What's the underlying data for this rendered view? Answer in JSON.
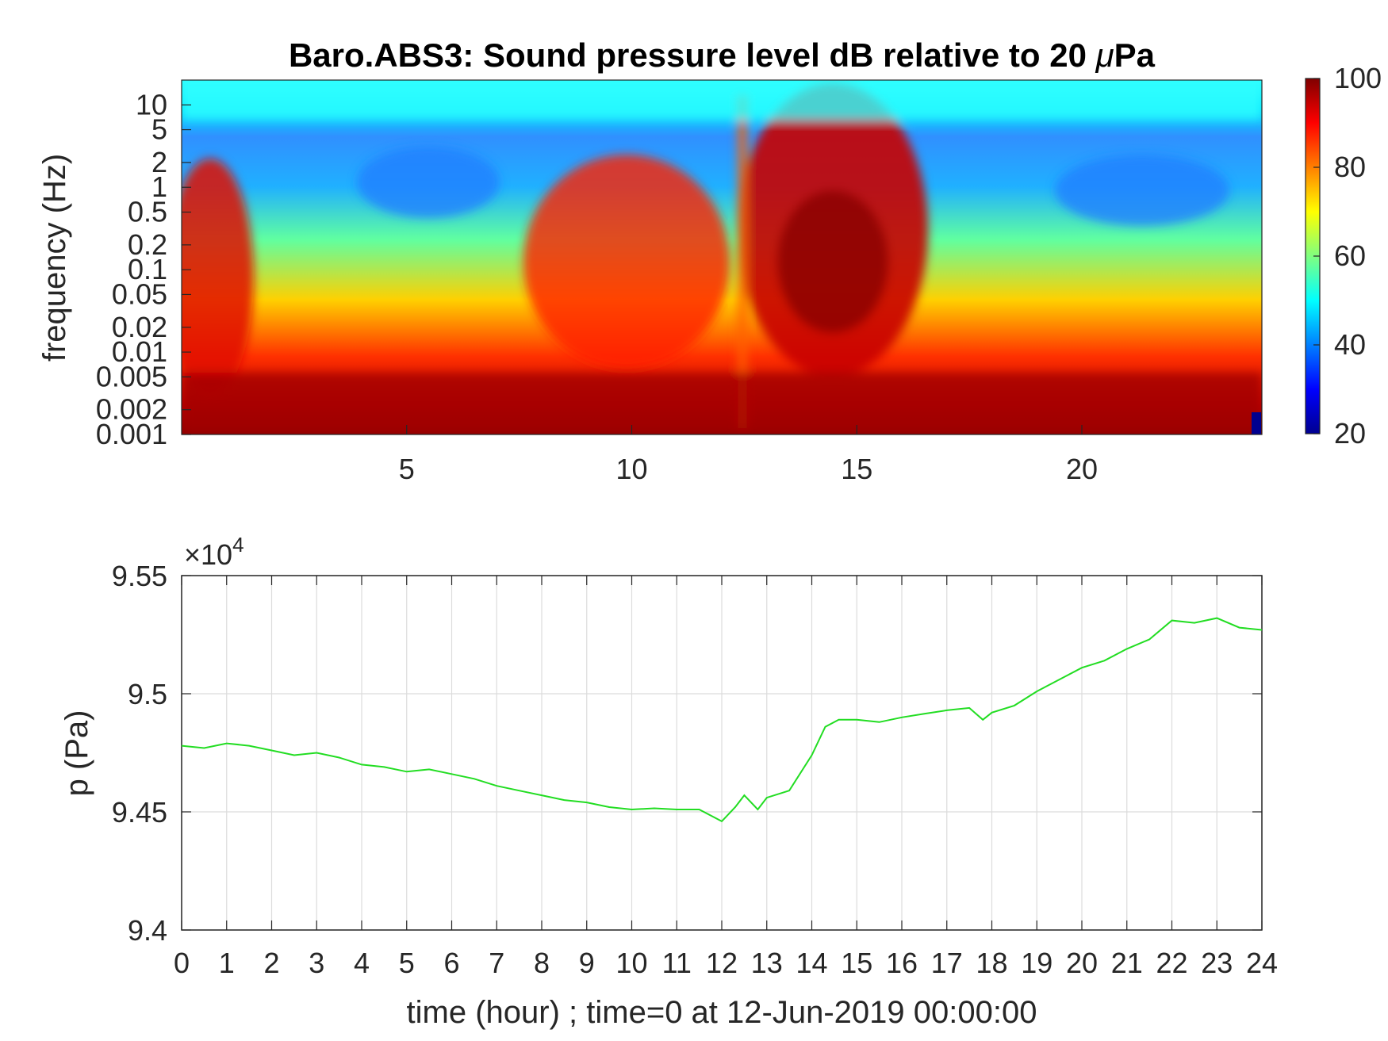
{
  "chart_data": [
    {
      "type": "heatmap",
      "title": "Baro.ABS3: Sound pressure level dB relative to 20 μPa",
      "title_parts": [
        "Baro.ABS3: Sound pressure level dB relative to 20 ",
        "μ",
        "Pa"
      ],
      "xlabel": "",
      "ylabel": "frequency (Hz)",
      "xlim": [
        0,
        24
      ],
      "x_ticks": [
        "5",
        "10",
        "15",
        "20"
      ],
      "y_scale": "log",
      "ylim": [
        0.001,
        20
      ],
      "y_ticks": [
        "0.001",
        "0.002",
        "0.005",
        "0.01",
        "0.02",
        "0.05",
        "0.1",
        "0.2",
        "0.5",
        "1",
        "2",
        "5",
        "10"
      ],
      "colormap": "jet",
      "colorbar": {
        "range": [
          20,
          100
        ],
        "ticks": [
          "20",
          "40",
          "60",
          "80",
          "100"
        ]
      },
      "grid": false,
      "description_values": {
        "high_level_regions_hours": [
          [
            0,
            2
          ],
          [
            8,
            12
          ],
          [
            13.5,
            16.5
          ]
        ],
        "transient_spike_hour": 12.4
      }
    },
    {
      "type": "line",
      "title": "",
      "xlabel": "time (hour) ; time=0 at 12-Jun-2019 00:00:00",
      "ylabel": "p (Pa)",
      "xlim": [
        0,
        24
      ],
      "x_ticks": [
        "0",
        "1",
        "2",
        "3",
        "4",
        "5",
        "6",
        "7",
        "8",
        "9",
        "10",
        "11",
        "12",
        "13",
        "14",
        "15",
        "16",
        "17",
        "18",
        "19",
        "20",
        "21",
        "22",
        "23",
        "24"
      ],
      "ylim": [
        9.4,
        9.55
      ],
      "y_ticks": [
        "9.4",
        "9.45",
        "9.5",
        "9.55"
      ],
      "y_multiplier": "×10",
      "y_multiplier_exp": "4",
      "grid": true,
      "series": [
        {
          "color": "#22dd22",
          "x": [
            0,
            0.5,
            1,
            1.5,
            2,
            2.5,
            3,
            3.5,
            4,
            4.5,
            5,
            5.5,
            6,
            6.5,
            7,
            7.5,
            8,
            8.5,
            9,
            9.5,
            10,
            10.5,
            11,
            11.5,
            12,
            12.3,
            12.5,
            12.8,
            13,
            13.5,
            14,
            14.3,
            14.6,
            15,
            15.5,
            16,
            16.5,
            17,
            17.5,
            17.8,
            18,
            18.5,
            19,
            19.5,
            20,
            20.5,
            21,
            21.5,
            22,
            22.5,
            23,
            23.5,
            24
          ],
          "y": [
            9.478,
            9.477,
            9.479,
            9.478,
            9.476,
            9.474,
            9.475,
            9.473,
            9.47,
            9.469,
            9.467,
            9.468,
            9.466,
            9.464,
            9.461,
            9.459,
            9.457,
            9.455,
            9.454,
            9.452,
            9.451,
            9.4515,
            9.451,
            9.451,
            9.446,
            9.452,
            9.457,
            9.451,
            9.456,
            9.459,
            9.474,
            9.486,
            9.489,
            9.489,
            9.488,
            9.49,
            9.4915,
            9.493,
            9.494,
            9.489,
            9.492,
            9.495,
            9.501,
            9.506,
            9.511,
            9.514,
            9.519,
            9.523,
            9.531,
            9.53,
            9.532,
            9.528,
            9.527
          ]
        }
      ]
    }
  ]
}
